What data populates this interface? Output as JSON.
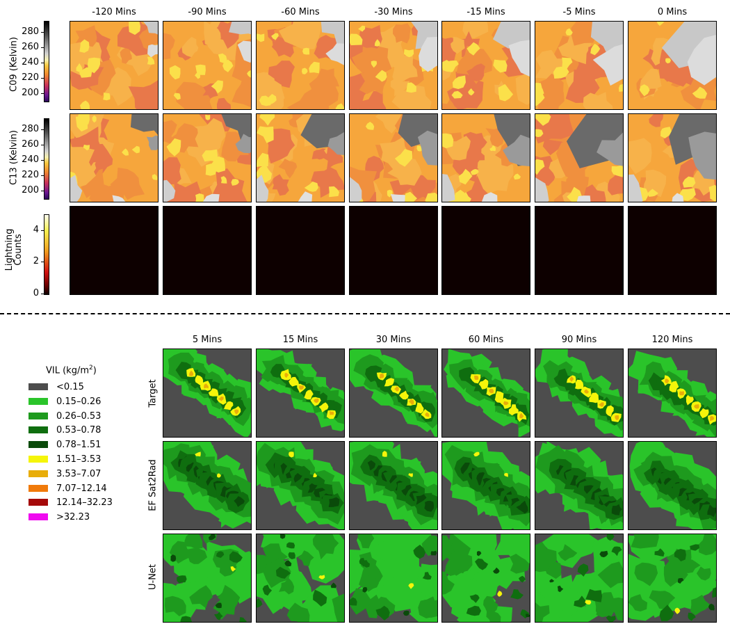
{
  "top": {
    "columns": [
      "-120 Mins",
      "-90 Mins",
      "-60 Mins",
      "-30 Mins",
      "-15 Mins",
      "-5 Mins",
      "0 Mins"
    ],
    "rows": [
      {
        "label": "C09 (Kelvin)",
        "ticks": [
          "280",
          "260",
          "240",
          "220",
          "200"
        ]
      },
      {
        "label": "C13 (Kelvin)",
        "ticks": [
          "280",
          "260",
          "240",
          "220",
          "200"
        ]
      },
      {
        "label_line1": "Lightning",
        "label_line2": "Counts",
        "ticks": [
          "4",
          "2",
          "0"
        ]
      }
    ]
  },
  "bottom": {
    "columns": [
      "5 Mins",
      "15 Mins",
      "30 Mins",
      "60 Mins",
      "90 Mins",
      "120 Mins"
    ],
    "rows": [
      "Target",
      "EF Sat2Rad",
      "U-Net"
    ]
  },
  "legend": {
    "title": "VIL (kg/m",
    "title_sup": "2",
    "title_end": ")",
    "items": [
      {
        "label": "<0.15",
        "color": "#4d4d4d"
      },
      {
        "label": "0.15–0.26",
        "color": "#2ac42a"
      },
      {
        "label": "0.26–0.53",
        "color": "#1e9a1e"
      },
      {
        "label": "0.53–0.78",
        "color": "#0f6e0f"
      },
      {
        "label": "0.78–1.51",
        "color": "#0a4a0a"
      },
      {
        "label": "1.51–3.53",
        "color": "#f5f50a"
      },
      {
        "label": "3.53–7.07",
        "color": "#e8ad0a"
      },
      {
        "label": "7.07–12.14",
        "color": "#f07a0a"
      },
      {
        "label": "12.14–32.23",
        "color": "#a50a0a"
      },
      {
        "label": ">32.23",
        "color": "#f00af0"
      }
    ]
  }
}
